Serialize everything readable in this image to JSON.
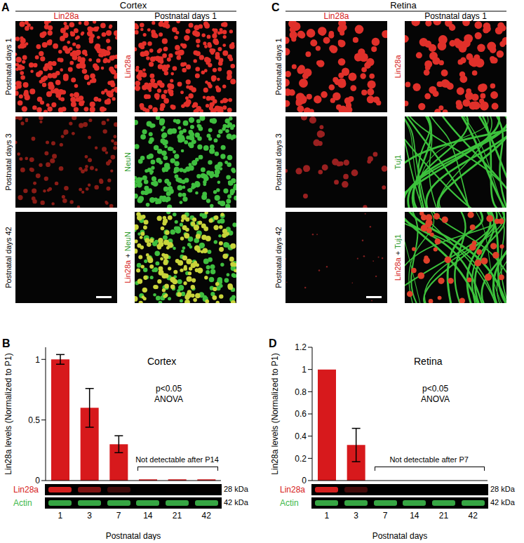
{
  "panels": [
    {
      "panel_label": "A",
      "region": "Cortex",
      "left_column": "Lin28a",
      "left_rows": [
        "Postnatal days 1",
        "Postnatal days 3",
        "Postnatal days 42"
      ],
      "right_column": "Postnatal days 1",
      "right_rows": [
        "Lin28a",
        "NeuN",
        "Lin28a + NeuN"
      ]
    },
    {
      "panel_label": "C",
      "region": "Retina",
      "left_column": "Lin28a",
      "left_rows": [
        "Postnatal days 1",
        "Postnatal days 3",
        "Postnatal days 42"
      ],
      "right_column": "Postnatal days 1",
      "right_rows": [
        "Lin28a",
        "Tuj1",
        "Lin28a + Tuj1"
      ]
    }
  ],
  "chart_data": [
    {
      "type": "bar",
      "panel_label": "B",
      "title": "Cortex",
      "categories": [
        "1",
        "3",
        "7",
        "14",
        "21",
        "42"
      ],
      "values": [
        1,
        0.6,
        0.3,
        0.01,
        0.01,
        0.01
      ],
      "errors": [
        0.04,
        0.16,
        0.07,
        null,
        null,
        null
      ],
      "color": "#d7191c",
      "ylim": [
        0,
        1.1
      ],
      "yticks": [
        0,
        0.5,
        1
      ],
      "x_label": "Postnatal days",
      "y_label": "Lin28a levels (Normalized to P1)",
      "annotations": [
        "p<0.05",
        "ANOVA",
        "Not detectable after P14"
      ],
      "blot": [
        {
          "label": "Lin28a",
          "size": "28 kDa",
          "color": "#d62020"
        },
        {
          "label": "Actin",
          "size": "42 kDa",
          "color": "#3cb84a"
        }
      ]
    },
    {
      "type": "bar",
      "panel_label": "D",
      "title": "Retina",
      "categories": [
        "1",
        "3",
        "7",
        "14",
        "21",
        "42"
      ],
      "values": [
        1,
        0.32,
        0,
        0,
        0,
        0
      ],
      "errors": [
        null,
        0.15,
        null,
        null,
        null,
        null
      ],
      "color": "#d7191c",
      "ylim": [
        0,
        1.2
      ],
      "yticks": [
        0,
        0.2,
        0.4,
        0.6,
        0.8,
        1,
        1.2
      ],
      "x_label": "Postnatal days",
      "y_label": "Lin28a levels (Normalized to P1)",
      "annotations": [
        "p<0.05",
        "ANOVA",
        "Not detectable after P7"
      ],
      "blot": [
        {
          "label": "Lin28a",
          "size": "28 kDa",
          "color": "#d62020"
        },
        {
          "label": "Actin",
          "size": "42 kDa",
          "color": "#3cb84a"
        }
      ]
    }
  ]
}
